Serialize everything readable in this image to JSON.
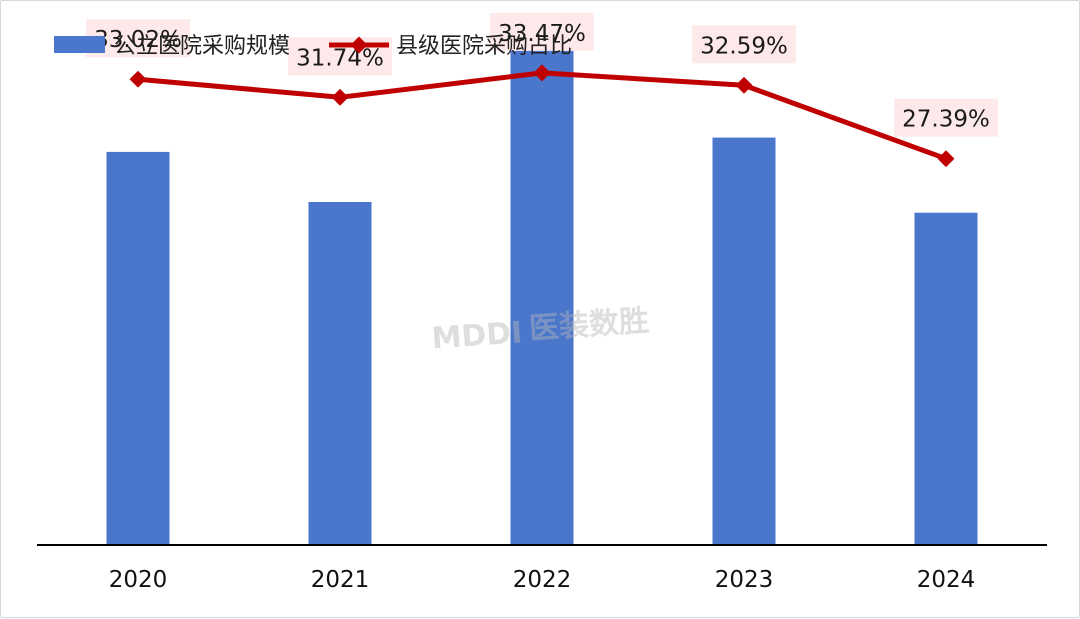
{
  "chart_data": {
    "type": "bar",
    "categories": [
      "2020",
      "2021",
      "2022",
      "2023",
      "2024"
    ],
    "series": [
      {
        "name": "公立医院采购规模",
        "type": "bar",
        "axis": "left",
        "color": "#4a76cc",
        "values": [
          1100,
          960,
          1410,
          1140,
          930
        ]
      },
      {
        "name": "县级医院采购占比",
        "type": "line",
        "axis": "right",
        "color": "#c00000",
        "values": [
          33.02,
          31.74,
          33.47,
          32.59,
          27.39
        ],
        "labels": [
          "33.02%",
          "31.74%",
          "33.47%",
          "32.59%",
          "27.39%"
        ]
      }
    ],
    "ylim_left": [
      0,
      1500
    ],
    "ylim_right": [
      0,
      38
    ],
    "legend_position": "top-left",
    "grid": false,
    "label_background": "#fde9e9"
  },
  "watermark": {
    "logo_text": "MDDI",
    "brand_text": "医装数胜"
  }
}
